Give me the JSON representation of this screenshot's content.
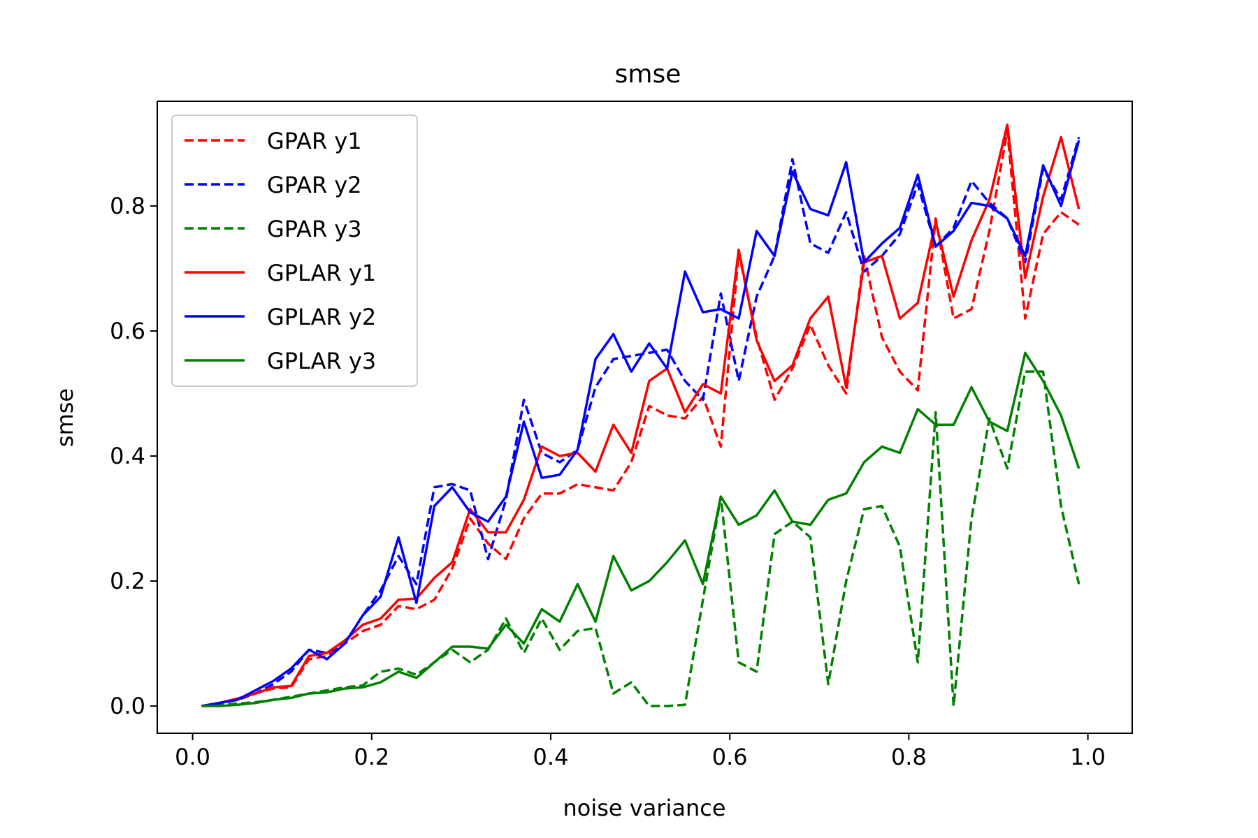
{
  "chart_data": {
    "type": "line",
    "title": "smse",
    "xlabel": "noise variance",
    "ylabel": "smse",
    "xlim": [
      -0.0395,
      1.0495
    ],
    "ylim": [
      -0.0435,
      0.9675
    ],
    "xticks": [
      0.0,
      0.2,
      0.4,
      0.6,
      0.8,
      1.0
    ],
    "xtick_labels": [
      "0.0",
      "0.2",
      "0.4",
      "0.6",
      "0.8",
      "1.0"
    ],
    "yticks": [
      0.0,
      0.2,
      0.4,
      0.6,
      0.8
    ],
    "ytick_labels": [
      "0.0",
      "0.2",
      "0.4",
      "0.6",
      "0.8"
    ],
    "grid": false,
    "legend_position": "top-left",
    "x": [
      0.01,
      0.03,
      0.05,
      0.07,
      0.09,
      0.11,
      0.13,
      0.15,
      0.17,
      0.19,
      0.21,
      0.23,
      0.25,
      0.27,
      0.29,
      0.31,
      0.33,
      0.35,
      0.37,
      0.39,
      0.41,
      0.43,
      0.45,
      0.47,
      0.49,
      0.51,
      0.53,
      0.55,
      0.57,
      0.59,
      0.61,
      0.63,
      0.65,
      0.67,
      0.69,
      0.71,
      0.73,
      0.75,
      0.77,
      0.79,
      0.81,
      0.83,
      0.85,
      0.87,
      0.89,
      0.91,
      0.93,
      0.95,
      0.97,
      0.99
    ],
    "series": [
      {
        "name": "GPAR y1",
        "color": "#ff0000",
        "dash": true,
        "values": [
          0.0,
          0.005,
          0.01,
          0.02,
          0.028,
          0.03,
          0.075,
          0.08,
          0.1,
          0.12,
          0.13,
          0.16,
          0.155,
          0.17,
          0.22,
          0.3,
          0.26,
          0.235,
          0.3,
          0.34,
          0.34,
          0.355,
          0.35,
          0.345,
          0.39,
          0.48,
          0.465,
          0.46,
          0.495,
          0.415,
          0.725,
          0.59,
          0.49,
          0.54,
          0.61,
          0.545,
          0.5,
          0.72,
          0.59,
          0.535,
          0.505,
          0.78,
          0.62,
          0.635,
          0.76,
          0.92,
          0.62,
          0.755,
          0.79,
          0.77
        ]
      },
      {
        "name": "GPAR y2",
        "color": "#0000ff",
        "dash": true,
        "values": [
          0.0,
          0.005,
          0.01,
          0.02,
          0.035,
          0.055,
          0.09,
          0.085,
          0.1,
          0.145,
          0.185,
          0.24,
          0.195,
          0.35,
          0.355,
          0.345,
          0.235,
          0.33,
          0.49,
          0.405,
          0.39,
          0.41,
          0.51,
          0.555,
          0.56,
          0.565,
          0.57,
          0.52,
          0.49,
          0.66,
          0.52,
          0.655,
          0.72,
          0.875,
          0.74,
          0.725,
          0.79,
          0.695,
          0.72,
          0.755,
          0.835,
          0.735,
          0.765,
          0.84,
          0.805,
          0.78,
          0.71,
          0.86,
          0.81,
          0.91
        ]
      },
      {
        "name": "GPAR y3",
        "color": "#008000",
        "dash": true,
        "values": [
          0.0,
          0.002,
          0.004,
          0.006,
          0.01,
          0.015,
          0.02,
          0.025,
          0.03,
          0.033,
          0.055,
          0.06,
          0.05,
          0.07,
          0.09,
          0.07,
          0.09,
          0.14,
          0.085,
          0.14,
          0.09,
          0.12,
          0.125,
          0.02,
          0.038,
          0.0,
          0.0,
          0.002,
          0.17,
          0.335,
          0.07,
          0.055,
          0.275,
          0.295,
          0.27,
          0.035,
          0.2,
          0.315,
          0.32,
          0.255,
          0.07,
          0.47,
          0.0,
          0.3,
          0.46,
          0.38,
          0.535,
          0.535,
          0.32,
          0.195
        ]
      },
      {
        "name": "GPLAR y1",
        "color": "#ff0000",
        "dash": false,
        "values": [
          0.0,
          0.005,
          0.012,
          0.02,
          0.03,
          0.032,
          0.08,
          0.085,
          0.105,
          0.13,
          0.14,
          0.17,
          0.172,
          0.205,
          0.23,
          0.315,
          0.278,
          0.278,
          0.33,
          0.415,
          0.4,
          0.405,
          0.375,
          0.45,
          0.405,
          0.52,
          0.54,
          0.47,
          0.515,
          0.5,
          0.73,
          0.585,
          0.52,
          0.545,
          0.62,
          0.655,
          0.51,
          0.71,
          0.72,
          0.62,
          0.645,
          0.775,
          0.655,
          0.745,
          0.81,
          0.93,
          0.685,
          0.815,
          0.91,
          0.795
        ]
      },
      {
        "name": "GPLAR y2",
        "color": "#0000ff",
        "dash": false,
        "values": [
          0.0,
          0.005,
          0.01,
          0.025,
          0.04,
          0.06,
          0.09,
          0.075,
          0.1,
          0.145,
          0.175,
          0.27,
          0.165,
          0.32,
          0.35,
          0.31,
          0.295,
          0.335,
          0.455,
          0.365,
          0.37,
          0.41,
          0.555,
          0.595,
          0.535,
          0.58,
          0.54,
          0.695,
          0.63,
          0.635,
          0.62,
          0.76,
          0.72,
          0.855,
          0.795,
          0.785,
          0.87,
          0.71,
          0.74,
          0.765,
          0.85,
          0.735,
          0.76,
          0.805,
          0.8,
          0.78,
          0.72,
          0.865,
          0.8,
          0.905
        ]
      },
      {
        "name": "GPLAR y3",
        "color": "#008000",
        "dash": false,
        "values": [
          0.0,
          0.0,
          0.002,
          0.005,
          0.01,
          0.013,
          0.02,
          0.022,
          0.028,
          0.03,
          0.038,
          0.055,
          0.045,
          0.07,
          0.095,
          0.095,
          0.092,
          0.13,
          0.1,
          0.155,
          0.135,
          0.195,
          0.135,
          0.24,
          0.185,
          0.2,
          0.23,
          0.265,
          0.195,
          0.335,
          0.29,
          0.305,
          0.345,
          0.295,
          0.29,
          0.33,
          0.34,
          0.39,
          0.415,
          0.405,
          0.475,
          0.45,
          0.45,
          0.51,
          0.455,
          0.44,
          0.565,
          0.52,
          0.465,
          0.38
        ]
      }
    ]
  }
}
